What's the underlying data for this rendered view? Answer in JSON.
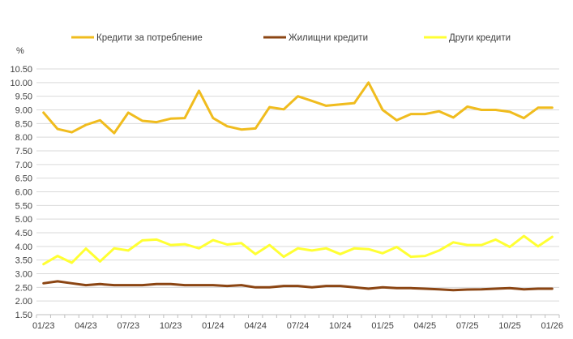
{
  "chart_data": {
    "type": "line",
    "ylabel": "%",
    "ylim": [
      1.5,
      10.5
    ],
    "ytick_step": 0.5,
    "grid": true,
    "legend_position": "top",
    "x": [
      "01/23",
      "02/23",
      "03/23",
      "04/23",
      "05/23",
      "06/23",
      "07/23",
      "08/23",
      "09/23",
      "10/23",
      "11/23",
      "12/23",
      "01/24",
      "02/24",
      "03/24",
      "04/24",
      "05/24",
      "06/24",
      "07/24",
      "08/24",
      "09/24",
      "10/24",
      "11/24",
      "12/24",
      "01/25",
      "02/25",
      "03/25",
      "04/25",
      "05/25",
      "06/25",
      "07/25",
      "08/25",
      "09/25",
      "10/25",
      "11/25",
      "12/25",
      "01/26"
    ],
    "x_tick_labels": [
      "01/23",
      "04/23",
      "07/23",
      "10/23",
      "01/24",
      "04/24",
      "07/24",
      "10/24",
      "01/25",
      "04/25",
      "07/25",
      "10/25",
      "01/26"
    ],
    "series": [
      {
        "name": "Кредити за потребление",
        "color": "#F0BC1E",
        "values": [
          8.9,
          8.3,
          8.18,
          8.45,
          8.62,
          8.15,
          8.9,
          8.6,
          8.55,
          8.68,
          8.7,
          9.7,
          8.7,
          8.4,
          8.28,
          8.32,
          9.1,
          9.02,
          9.5,
          9.33,
          9.15,
          9.2,
          9.25,
          10.0,
          9.0,
          8.62,
          8.85,
          8.85,
          8.95,
          8.72,
          9.12,
          9.0,
          9.0,
          8.93,
          8.7,
          9.08,
          9.08
        ]
      },
      {
        "name": "Жилищни кредити",
        "color": "#8B4513",
        "values": [
          2.65,
          2.72,
          2.65,
          2.58,
          2.62,
          2.58,
          2.58,
          2.58,
          2.62,
          2.62,
          2.58,
          2.58,
          2.58,
          2.55,
          2.58,
          2.5,
          2.5,
          2.55,
          2.55,
          2.5,
          2.55,
          2.55,
          2.5,
          2.45,
          2.5,
          2.47,
          2.47,
          2.45,
          2.43,
          2.4,
          2.42,
          2.43,
          2.45,
          2.47,
          2.43,
          2.45,
          2.45
        ]
      },
      {
        "name": "Други кредити",
        "color": "#FFFF33",
        "values": [
          3.35,
          3.65,
          3.4,
          3.92,
          3.45,
          3.93,
          3.85,
          4.22,
          4.25,
          4.05,
          4.08,
          3.93,
          4.23,
          4.07,
          4.12,
          3.72,
          4.05,
          3.62,
          3.93,
          3.85,
          3.93,
          3.72,
          3.93,
          3.9,
          3.75,
          3.98,
          3.62,
          3.65,
          3.85,
          4.15,
          4.05,
          4.05,
          4.25,
          3.98,
          4.38,
          4.0,
          4.35
        ]
      }
    ]
  }
}
